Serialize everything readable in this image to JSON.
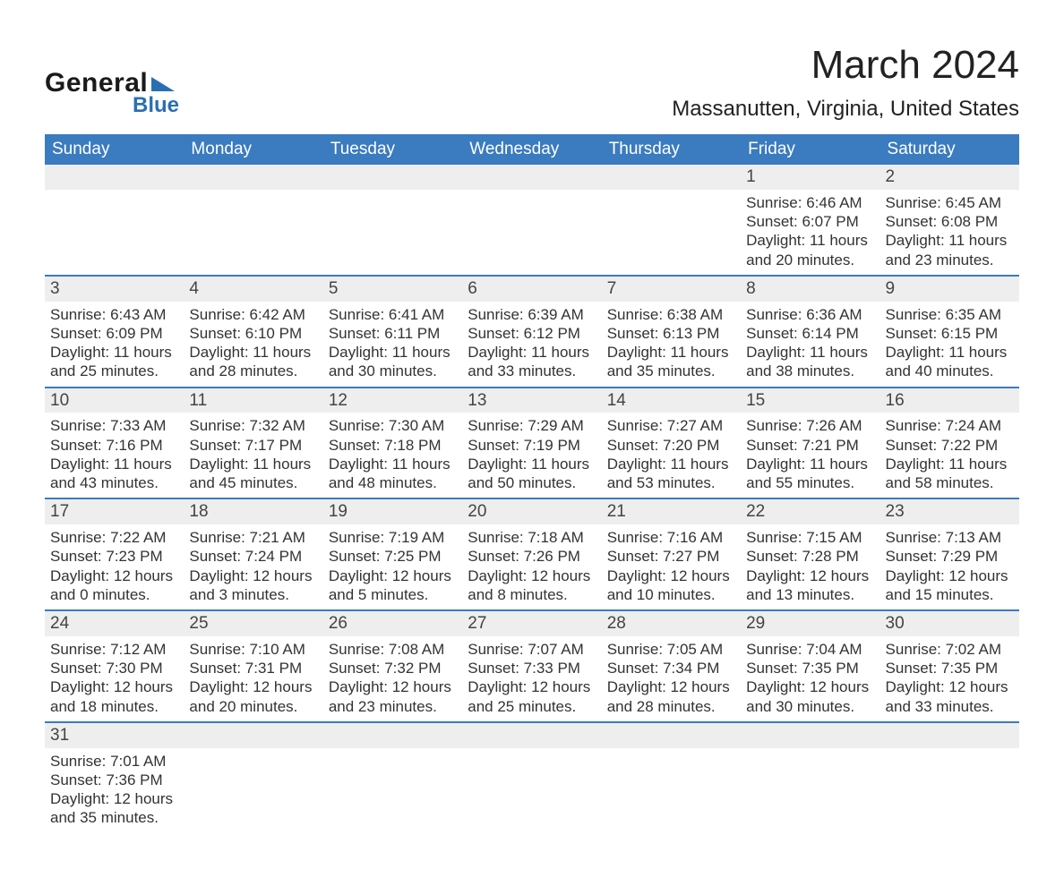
{
  "brand": {
    "line1": "General",
    "line2": "Blue"
  },
  "title": "March 2024",
  "location": "Massanutten, Virginia, United States",
  "colors": {
    "header_blue": "#3b7bbf",
    "row_separator": "#3b7bbf",
    "daynum_bg": "#eeeeee",
    "text_dark": "#333333",
    "logo_blue": "#2a6fb3"
  },
  "weekdays": [
    "Sunday",
    "Monday",
    "Tuesday",
    "Wednesday",
    "Thursday",
    "Friday",
    "Saturday"
  ],
  "labels": {
    "sunrise": "Sunrise",
    "sunset": "Sunset",
    "daylight": "Daylight"
  },
  "weeks": [
    [
      null,
      null,
      null,
      null,
      null,
      {
        "day": 1,
        "sunrise": "6:46 AM",
        "sunset": "6:07 PM",
        "daylight": "11 hours and 20 minutes."
      },
      {
        "day": 2,
        "sunrise": "6:45 AM",
        "sunset": "6:08 PM",
        "daylight": "11 hours and 23 minutes."
      }
    ],
    [
      {
        "day": 3,
        "sunrise": "6:43 AM",
        "sunset": "6:09 PM",
        "daylight": "11 hours and 25 minutes."
      },
      {
        "day": 4,
        "sunrise": "6:42 AM",
        "sunset": "6:10 PM",
        "daylight": "11 hours and 28 minutes."
      },
      {
        "day": 5,
        "sunrise": "6:41 AM",
        "sunset": "6:11 PM",
        "daylight": "11 hours and 30 minutes."
      },
      {
        "day": 6,
        "sunrise": "6:39 AM",
        "sunset": "6:12 PM",
        "daylight": "11 hours and 33 minutes."
      },
      {
        "day": 7,
        "sunrise": "6:38 AM",
        "sunset": "6:13 PM",
        "daylight": "11 hours and 35 minutes."
      },
      {
        "day": 8,
        "sunrise": "6:36 AM",
        "sunset": "6:14 PM",
        "daylight": "11 hours and 38 minutes."
      },
      {
        "day": 9,
        "sunrise": "6:35 AM",
        "sunset": "6:15 PM",
        "daylight": "11 hours and 40 minutes."
      }
    ],
    [
      {
        "day": 10,
        "sunrise": "7:33 AM",
        "sunset": "7:16 PM",
        "daylight": "11 hours and 43 minutes."
      },
      {
        "day": 11,
        "sunrise": "7:32 AM",
        "sunset": "7:17 PM",
        "daylight": "11 hours and 45 minutes."
      },
      {
        "day": 12,
        "sunrise": "7:30 AM",
        "sunset": "7:18 PM",
        "daylight": "11 hours and 48 minutes."
      },
      {
        "day": 13,
        "sunrise": "7:29 AM",
        "sunset": "7:19 PM",
        "daylight": "11 hours and 50 minutes."
      },
      {
        "day": 14,
        "sunrise": "7:27 AM",
        "sunset": "7:20 PM",
        "daylight": "11 hours and 53 minutes."
      },
      {
        "day": 15,
        "sunrise": "7:26 AM",
        "sunset": "7:21 PM",
        "daylight": "11 hours and 55 minutes."
      },
      {
        "day": 16,
        "sunrise": "7:24 AM",
        "sunset": "7:22 PM",
        "daylight": "11 hours and 58 minutes."
      }
    ],
    [
      {
        "day": 17,
        "sunrise": "7:22 AM",
        "sunset": "7:23 PM",
        "daylight": "12 hours and 0 minutes."
      },
      {
        "day": 18,
        "sunrise": "7:21 AM",
        "sunset": "7:24 PM",
        "daylight": "12 hours and 3 minutes."
      },
      {
        "day": 19,
        "sunrise": "7:19 AM",
        "sunset": "7:25 PM",
        "daylight": "12 hours and 5 minutes."
      },
      {
        "day": 20,
        "sunrise": "7:18 AM",
        "sunset": "7:26 PM",
        "daylight": "12 hours and 8 minutes."
      },
      {
        "day": 21,
        "sunrise": "7:16 AM",
        "sunset": "7:27 PM",
        "daylight": "12 hours and 10 minutes."
      },
      {
        "day": 22,
        "sunrise": "7:15 AM",
        "sunset": "7:28 PM",
        "daylight": "12 hours and 13 minutes."
      },
      {
        "day": 23,
        "sunrise": "7:13 AM",
        "sunset": "7:29 PM",
        "daylight": "12 hours and 15 minutes."
      }
    ],
    [
      {
        "day": 24,
        "sunrise": "7:12 AM",
        "sunset": "7:30 PM",
        "daylight": "12 hours and 18 minutes."
      },
      {
        "day": 25,
        "sunrise": "7:10 AM",
        "sunset": "7:31 PM",
        "daylight": "12 hours and 20 minutes."
      },
      {
        "day": 26,
        "sunrise": "7:08 AM",
        "sunset": "7:32 PM",
        "daylight": "12 hours and 23 minutes."
      },
      {
        "day": 27,
        "sunrise": "7:07 AM",
        "sunset": "7:33 PM",
        "daylight": "12 hours and 25 minutes."
      },
      {
        "day": 28,
        "sunrise": "7:05 AM",
        "sunset": "7:34 PM",
        "daylight": "12 hours and 28 minutes."
      },
      {
        "day": 29,
        "sunrise": "7:04 AM",
        "sunset": "7:35 PM",
        "daylight": "12 hours and 30 minutes."
      },
      {
        "day": 30,
        "sunrise": "7:02 AM",
        "sunset": "7:35 PM",
        "daylight": "12 hours and 33 minutes."
      }
    ],
    [
      {
        "day": 31,
        "sunrise": "7:01 AM",
        "sunset": "7:36 PM",
        "daylight": "12 hours and 35 minutes."
      },
      null,
      null,
      null,
      null,
      null,
      null
    ]
  ]
}
